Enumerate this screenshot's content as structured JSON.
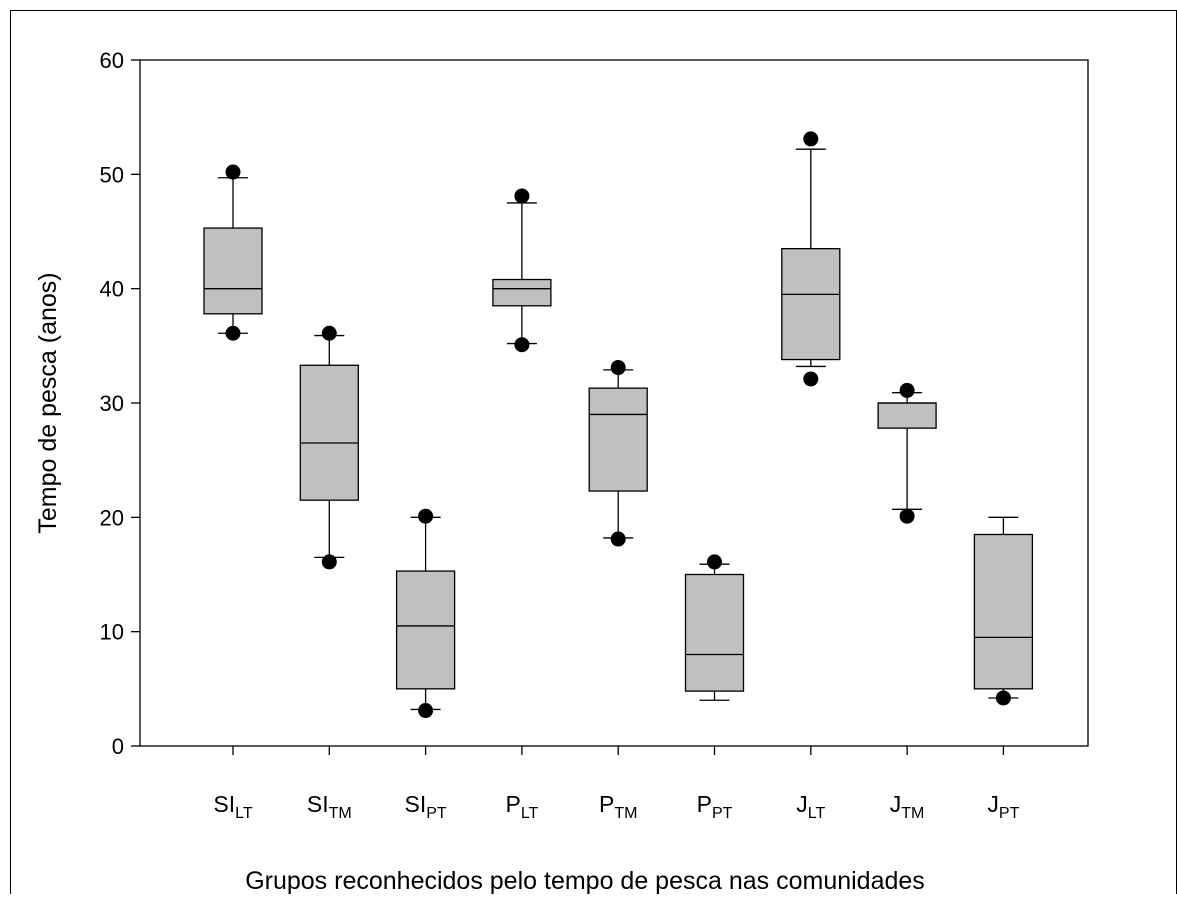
{
  "chart_data": {
    "type": "boxplot",
    "title": "",
    "xlabel": "Grupos reconhecidos pelo tempo de pesca nas comunidades",
    "ylabel": "Tempo de pesca (anos)",
    "ylim": [
      0,
      60
    ],
    "yticks": [
      0,
      10,
      20,
      30,
      40,
      50,
      60
    ],
    "grid": false,
    "box_color": "#c0c0c0",
    "categories": [
      {
        "base": "SI",
        "sub": "LT"
      },
      {
        "base": "SI",
        "sub": "TM"
      },
      {
        "base": "SI",
        "sub": "PT"
      },
      {
        "base": "P",
        "sub": "LT"
      },
      {
        "base": "P",
        "sub": "TM"
      },
      {
        "base": "P",
        "sub": "PT"
      },
      {
        "base": "J",
        "sub": "LT"
      },
      {
        "base": "J",
        "sub": "TM"
      },
      {
        "base": "J",
        "sub": "PT"
      }
    ],
    "boxes": [
      {
        "whisker_low": 36.1,
        "q1": 37.8,
        "median": 40.0,
        "q3": 45.3,
        "whisker_high": 49.7,
        "outliers": [
          36.1,
          50.2
        ]
      },
      {
        "whisker_low": 16.5,
        "q1": 21.5,
        "median": 26.5,
        "q3": 33.3,
        "whisker_high": 35.9,
        "outliers": [
          16.1,
          36.1
        ]
      },
      {
        "whisker_low": 3.2,
        "q1": 5.0,
        "median": 10.5,
        "q3": 15.3,
        "whisker_high": 20.0,
        "outliers": [
          3.1,
          20.1
        ]
      },
      {
        "whisker_low": 35.2,
        "q1": 38.5,
        "median": 40.0,
        "q3": 40.8,
        "whisker_high": 47.5,
        "outliers": [
          35.1,
          48.1
        ]
      },
      {
        "whisker_low": 18.2,
        "q1": 22.3,
        "median": 29.0,
        "q3": 31.3,
        "whisker_high": 32.9,
        "outliers": [
          18.1,
          33.1
        ]
      },
      {
        "whisker_low": 4.0,
        "q1": 4.8,
        "median": 8.0,
        "q3": 15.0,
        "whisker_high": 15.9,
        "outliers": [
          16.1
        ]
      },
      {
        "whisker_low": 33.2,
        "q1": 33.8,
        "median": 39.5,
        "q3": 43.5,
        "whisker_high": 52.2,
        "outliers": [
          32.1,
          53.1
        ]
      },
      {
        "whisker_low": 20.7,
        "q1": 27.8,
        "median": 30.0,
        "q3": 30.0,
        "whisker_high": 30.9,
        "outliers": [
          20.1,
          31.1
        ]
      },
      {
        "whisker_low": 4.2,
        "q1": 5.0,
        "median": 9.5,
        "q3": 18.5,
        "whisker_high": 20.0,
        "outliers": [
          4.2
        ]
      }
    ]
  }
}
